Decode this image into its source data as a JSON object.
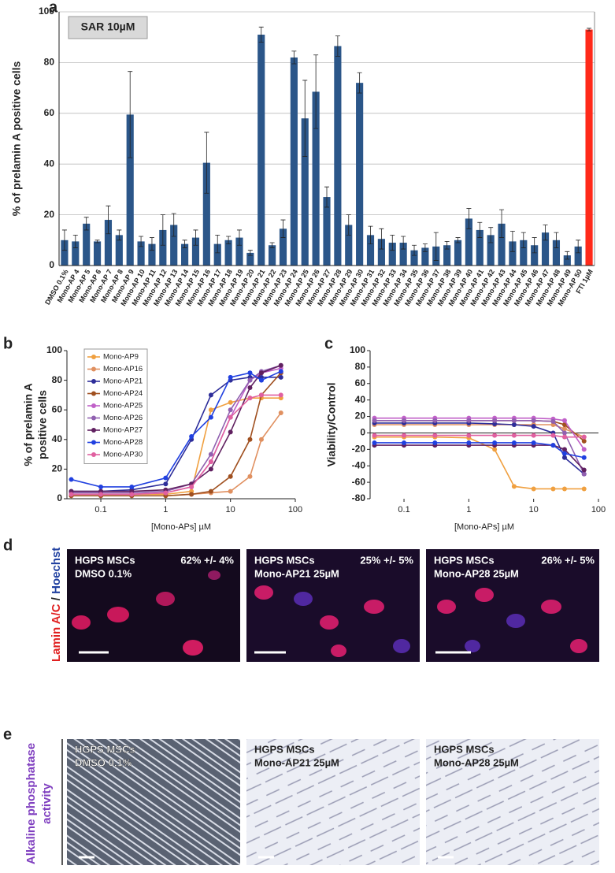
{
  "chart_data": [
    {
      "type": "bar",
      "panel_label": "a",
      "annotation": "SAR 10µM",
      "ylabel": "% of prelamin A positive cells",
      "categories": [
        "DMSO 0.1%",
        "Mono-AP 4",
        "Mono-AP 5",
        "Mono-AP 6",
        "Mono-AP 7",
        "Mono-AP 8",
        "Mono-AP 9",
        "Mono-AP 10",
        "Mono-AP 11",
        "Mono-AP 12",
        "Mono-AP 13",
        "Mono-AP 14",
        "Mono-AP 15",
        "Mono-AP 16",
        "Mono-AP 17",
        "Mono-AP 18",
        "Mono-AP 19",
        "Mono-AP 20",
        "Mono-AP 21",
        "Mono-AP 22",
        "Mono-AP 23",
        "Mono-AP 24",
        "Mono-AP 25",
        "Mono-AP 26",
        "Mono-AP 27",
        "Mono-AP 28",
        "Mono-AP 29",
        "Mono-AP 30",
        "Mono-AP 31",
        "Mono-AP 32",
        "Mono-AP 33",
        "Mono-AP 34",
        "Mono-AP 35",
        "Mono-AP 36",
        "Mono-AP 37",
        "Mono-AP 38",
        "Mono-AP 39",
        "Mono-AP 40",
        "Mono-AP 41",
        "Mono-AP 42",
        "Mono-AP 43",
        "Mono-AP 44",
        "Mono-AP 45",
        "Mono-AP 46",
        "Mono-AP 47",
        "Mono-AP 48",
        "Mono-AP 49",
        "Mono-AP 50",
        "FTI 1µM"
      ],
      "values": [
        10,
        9.5,
        16.5,
        9.5,
        18,
        12,
        59.5,
        9.5,
        8.5,
        14,
        16,
        8.5,
        11,
        40.5,
        8.5,
        10,
        11,
        5,
        91,
        8,
        14.5,
        82,
        58,
        68.5,
        27,
        86.5,
        16,
        72,
        12,
        10.5,
        9,
        9,
        6,
        7,
        7.5,
        8,
        10,
        18.5,
        14,
        12,
        16.5,
        9.5,
        10,
        8,
        13,
        10,
        4,
        7.5,
        93
      ],
      "errors": [
        4,
        2.5,
        2.5,
        0.5,
        5.5,
        2,
        17,
        2,
        2.5,
        6,
        4.5,
        1.5,
        3,
        12,
        3.5,
        1.5,
        3,
        1,
        3,
        1,
        3.5,
        2.5,
        15,
        14.5,
        4,
        4,
        4,
        4,
        3.5,
        4,
        3,
        2.5,
        2,
        1.5,
        5.5,
        1.5,
        1,
        4,
        3,
        3,
        5.5,
        4,
        3,
        3,
        3,
        3,
        1.5,
        2.5,
        0.5
      ],
      "colors": [
        "#2b5689",
        "#2b5689",
        "#2b5689",
        "#2b5689",
        "#2b5689",
        "#2b5689",
        "#2b5689",
        "#2b5689",
        "#2b5689",
        "#2b5689",
        "#2b5689",
        "#2b5689",
        "#2b5689",
        "#2b5689",
        "#2b5689",
        "#2b5689",
        "#2b5689",
        "#2b5689",
        "#2b5689",
        "#2b5689",
        "#2b5689",
        "#2b5689",
        "#2b5689",
        "#2b5689",
        "#2b5689",
        "#2b5689",
        "#2b5689",
        "#2b5689",
        "#2b5689",
        "#2b5689",
        "#2b5689",
        "#2b5689",
        "#2b5689",
        "#2b5689",
        "#2b5689",
        "#2b5689",
        "#2b5689",
        "#2b5689",
        "#2b5689",
        "#2b5689",
        "#2b5689",
        "#2b5689",
        "#2b5689",
        "#2b5689",
        "#2b5689",
        "#2b5689",
        "#2b5689",
        "#2b5689",
        "#ff2a1a"
      ],
      "ylim": [
        0,
        100
      ],
      "yticks": [
        0,
        20,
        40,
        60,
        80,
        100
      ],
      "grid": true
    },
    {
      "type": "line",
      "panel_label": "b",
      "ylabel": [
        "% of prelamin A",
        "positive cells"
      ],
      "xlabel": "[Mono-APs] µM",
      "log_x": true,
      "legend": "upper left",
      "x": [
        0.035,
        0.1,
        0.3,
        1,
        2.5,
        5,
        10,
        20,
        30,
        60
      ],
      "series": [
        {
          "name": "Mono-AP9",
          "color": "#f0a040",
          "values": [
            3,
            3,
            3,
            3,
            5,
            60,
            65,
            68,
            68,
            68
          ]
        },
        {
          "name": "Mono-AP16",
          "color": "#e09060",
          "values": [
            2,
            2,
            2,
            2,
            3,
            4,
            5,
            15,
            40,
            58
          ]
        },
        {
          "name": "Mono-AP21",
          "color": "#2e2e9a",
          "values": [
            5,
            5,
            6,
            10,
            40,
            70,
            80,
            82,
            82,
            82
          ]
        },
        {
          "name": "Mono-AP24",
          "color": "#a05020",
          "values": [
            2,
            2,
            2,
            2,
            3,
            5,
            15,
            40,
            70,
            85
          ]
        },
        {
          "name": "Mono-AP25",
          "color": "#c060c8",
          "values": [
            3,
            3,
            3,
            4,
            8,
            25,
            55,
            80,
            85,
            88
          ]
        },
        {
          "name": "Mono-AP26",
          "color": "#9060b0",
          "values": [
            4,
            4,
            4,
            5,
            10,
            30,
            60,
            80,
            86,
            90
          ]
        },
        {
          "name": "Mono-AP27",
          "color": "#602060",
          "values": [
            5,
            5,
            5,
            6,
            10,
            20,
            45,
            75,
            85,
            90
          ]
        },
        {
          "name": "Mono-AP28",
          "color": "#2040e0",
          "values": [
            13,
            8,
            8,
            14,
            42,
            55,
            82,
            85,
            80,
            86
          ]
        },
        {
          "name": "Mono-AP30",
          "color": "#e060a0",
          "values": [
            3,
            3,
            3,
            4,
            8,
            25,
            55,
            68,
            70,
            70
          ]
        }
      ],
      "xlim": [
        0.03,
        100
      ],
      "xticks": [
        0.1,
        1,
        10,
        100
      ],
      "ylim": [
        0,
        100
      ],
      "yticks": [
        0,
        20,
        40,
        60,
        80,
        100
      ]
    },
    {
      "type": "line",
      "panel_label": "c",
      "ylabel": [
        "Viability/Control"
      ],
      "xlabel": "[Mono-APs] µM",
      "log_x": true,
      "x": [
        0.035,
        0.1,
        0.3,
        1,
        2.5,
        5,
        10,
        20,
        30,
        60
      ],
      "series": [
        {
          "color": "#f0a040",
          "values": [
            -5,
            -5,
            -5,
            -6,
            -20,
            -65,
            -68,
            -68,
            -68,
            -68
          ]
        },
        {
          "color": "#e09060",
          "values": [
            10,
            10,
            10,
            10,
            10,
            10,
            10,
            10,
            5,
            -5
          ]
        },
        {
          "color": "#2e2e9a",
          "values": [
            12,
            12,
            12,
            12,
            11,
            10,
            8,
            0,
            -30,
            -50
          ]
        },
        {
          "color": "#a05020",
          "values": [
            15,
            15,
            15,
            15,
            15,
            15,
            15,
            14,
            10,
            -10
          ]
        },
        {
          "color": "#c060c8",
          "values": [
            18,
            18,
            18,
            18,
            18,
            18,
            18,
            17,
            15,
            -20
          ]
        },
        {
          "color": "#9060b0",
          "values": [
            15,
            15,
            15,
            15,
            15,
            15,
            15,
            14,
            0,
            -50
          ]
        },
        {
          "color": "#602060",
          "values": [
            -15,
            -15,
            -15,
            -15,
            -15,
            -15,
            -15,
            -15,
            -20,
            -45
          ]
        },
        {
          "color": "#2040e0",
          "values": [
            -12,
            -12,
            -12,
            -12,
            -12,
            -12,
            -12,
            -15,
            -25,
            -30
          ]
        },
        {
          "color": "#e060a0",
          "values": [
            -3,
            -3,
            -3,
            -3,
            -3,
            -3,
            -3,
            -3,
            -5,
            -5
          ]
        }
      ],
      "xlim": [
        0.03,
        100
      ],
      "xticks": [
        0.1,
        1,
        10,
        100
      ],
      "ylim": [
        -80,
        100
      ],
      "yticks": [
        -80,
        -60,
        -40,
        -20,
        0,
        20,
        40,
        60,
        80,
        100
      ]
    }
  ],
  "panels": {
    "d": {
      "label": "d",
      "side_label": [
        "Lamin A/C",
        "/",
        "Hoechst"
      ],
      "images": [
        {
          "line1": "HGPS MSCs",
          "line2": "DMSO 0.1%",
          "stat": "62% +/- 4%"
        },
        {
          "line1": "HGPS MSCs",
          "line2": "Mono-AP21 25µM",
          "stat": "25% +/- 5%"
        },
        {
          "line1": "HGPS MSCs",
          "line2": "Mono-AP28 25µM",
          "stat": "26% +/- 5%"
        }
      ]
    },
    "e": {
      "label": "e",
      "side_label": [
        "Alkaline phosphatase",
        "activity"
      ],
      "images": [
        {
          "line1": "HGPS MSCs",
          "line2": "DMSO 0.1%"
        },
        {
          "line1": "HGPS MSCs",
          "line2": "Mono-AP21 25µM"
        },
        {
          "line1": "HGPS MSCs",
          "line2": "Mono-AP28 25µM"
        }
      ]
    }
  }
}
